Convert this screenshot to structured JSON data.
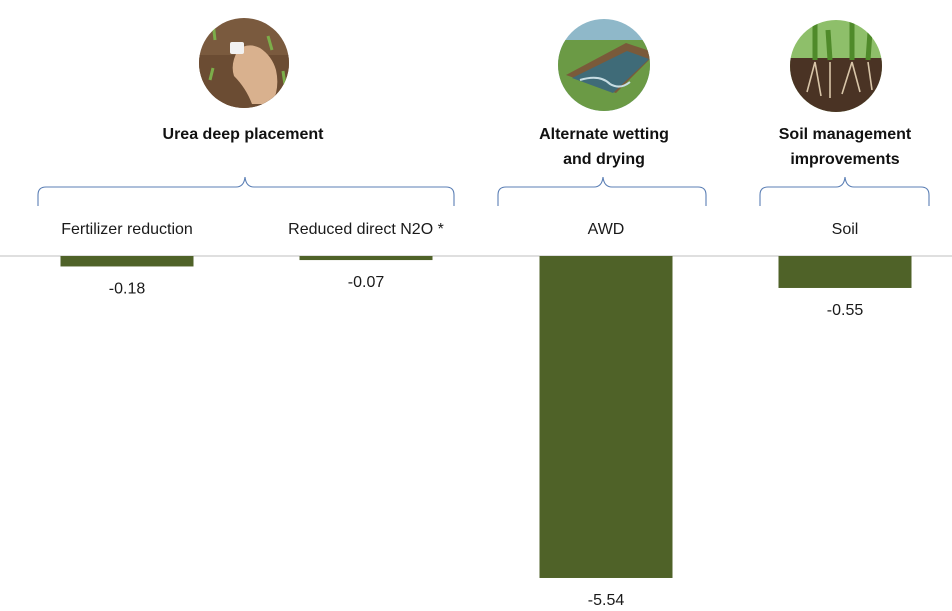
{
  "chart_data": {
    "type": "bar",
    "title": "",
    "xlabel": "",
    "ylabel": "",
    "categories": [
      "Fertilizer reduction",
      "Reduced direct N2O *",
      "AWD",
      "Soil"
    ],
    "values": [
      -0.18,
      -0.07,
      -5.54,
      -0.55
    ],
    "value_labels": [
      "-0.18",
      "-0.07",
      "-5.54",
      "-0.55"
    ],
    "ylim": [
      -5.54,
      0
    ],
    "grid": false,
    "bar_color": "#4f6228",
    "groups": [
      {
        "title_lines": [
          "Urea deep placement"
        ],
        "categories": [
          "Fertilizer reduction",
          "Reduced direct N2O *"
        ],
        "icon": "fertilizer-hand-icon"
      },
      {
        "title_lines": [
          "Alternate wetting",
          "and drying"
        ],
        "categories": [
          "AWD"
        ],
        "icon": "rice-paddy-water-icon"
      },
      {
        "title_lines": [
          "Soil management",
          "improvements"
        ],
        "categories": [
          "Soil"
        ],
        "icon": "soil-roots-icon"
      }
    ]
  },
  "colors": {
    "bar": "#4f6228",
    "brace": "#5b7fb5",
    "baseline": "#bfbfbf"
  }
}
